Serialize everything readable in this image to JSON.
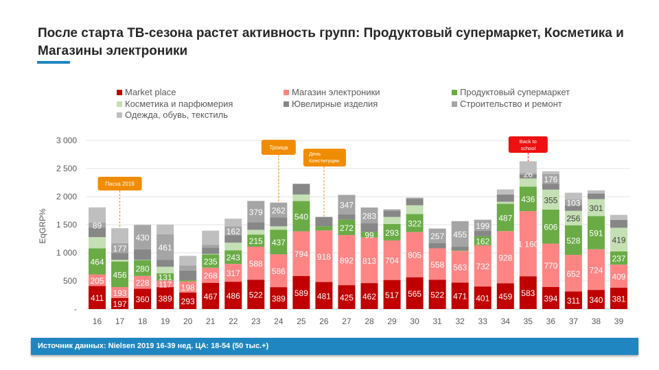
{
  "title": "После старта ТВ-сезона растет активность групп: Продуктовый супермаркет, Косметика и Магазины электроники",
  "footer": "Источник данных: Nielsen 2019 16-39 нед. ЦА: 18-54 (50 тыс.+)",
  "chart_data": {
    "type": "bar",
    "stacked": true,
    "ylabel": "EqGRP%",
    "xlabel": "",
    "ylim": [
      0,
      3000
    ],
    "yticks": [
      "-",
      "500",
      "1 000",
      "1 500",
      "2 000",
      "2 500",
      "3 000"
    ],
    "ytick_values": [
      0,
      500,
      1000,
      1500,
      2000,
      2500,
      3000
    ],
    "grid": true,
    "legend_position": "top",
    "categories": [
      "16",
      "17",
      "18",
      "19",
      "20",
      "21",
      "22",
      "23",
      "24",
      "25",
      "26",
      "27",
      "28",
      "29",
      "30",
      "31",
      "32",
      "33",
      "34",
      "35",
      "36",
      "37",
      "38",
      "39"
    ],
    "series": [
      {
        "name": "Market place",
        "color": "#c00000",
        "label_color": "#ffffff",
        "values": [
          411,
          197,
          360,
          389,
          293,
          467,
          486,
          522,
          389,
          589,
          481,
          425,
          462,
          517,
          565,
          522,
          471,
          401,
          459,
          583,
          394,
          311,
          340,
          381
        ],
        "labels": [
          "411",
          "197",
          "360",
          "389",
          "293",
          "467",
          "486",
          "522",
          "389",
          "589",
          "481",
          "425",
          "462",
          "517",
          "565",
          "522",
          "471",
          "401",
          "459",
          "583",
          "394",
          "311",
          "340",
          "381"
        ]
      },
      {
        "name": "Магазин электроники",
        "color": "#ff8585",
        "label_color": "#ffffff",
        "values": [
          205,
          193,
          228,
          117,
          198,
          268,
          317,
          588,
          586,
          794,
          918,
          892,
          813,
          704,
          805,
          558,
          563,
          732,
          928,
          1160,
          770,
          652,
          724,
          409
        ],
        "labels": [
          "205",
          "193",
          "228",
          "117",
          "198",
          "268",
          "317",
          "588",
          "586",
          "794",
          "918",
          "892",
          "813",
          "704",
          "805",
          "558",
          "563",
          "732",
          "928",
          "1 160",
          "770",
          "652",
          "724",
          "409"
        ]
      },
      {
        "name": "Продуктовый супермаркет",
        "color": "#6aab46",
        "label_color": "#ffffff",
        "values": [
          464,
          456,
          280,
          131,
          20,
          235,
          243,
          215,
          437,
          540,
          75,
          272,
          99,
          293,
          322,
          0,
          10,
          162,
          487,
          436,
          606,
          528,
          591,
          237
        ],
        "labels": [
          "464",
          "456",
          "280",
          "131",
          "",
          "235",
          "243",
          "215",
          "437",
          "540",
          "",
          "272",
          "99",
          "293",
          "322",
          "",
          "",
          "162",
          "487",
          "436",
          "606",
          "528",
          "591",
          "237"
        ]
      },
      {
        "name": "Косметика и парфюмерия",
        "color": "#c5e0b4",
        "label_color": "#404040",
        "values": [
          200,
          30,
          5,
          115,
          0,
          10,
          135,
          85,
          60,
          115,
          0,
          0,
          0,
          125,
          155,
          0,
          0,
          0,
          35,
          145,
          355,
          256,
          301,
          419
        ],
        "labels": [
          "",
          "",
          "",
          "",
          "",
          "",
          "",
          "",
          "",
          "",
          "",
          "",
          "",
          "",
          "",
          "",
          "",
          "",
          "",
          "",
          "355",
          "256",
          "301",
          "419"
        ]
      },
      {
        "name": "Ювелирные изделия",
        "color": "#878787",
        "label_color": "#ffffff",
        "values": [
          170,
          120,
          190,
          120,
          175,
          115,
          130,
          135,
          160,
          190,
          165,
          95,
          150,
          105,
          115,
          95,
          65,
          95,
          130,
          70,
          105,
          100,
          100,
          140
        ],
        "labels": [
          "",
          "",
          "",
          "",
          "",
          "",
          "",
          "",
          "",
          "",
          "",
          "",
          "",
          "",
          "",
          "",
          "",
          "",
          "",
          "",
          "",
          "",
          "",
          ""
        ]
      },
      {
        "name": "Строительство и ремонт",
        "color": "#a5a5a5",
        "label_color": "#ffffff",
        "values": [
          89,
          177,
          430,
          461,
          90,
          50,
          162,
          379,
          262,
          0,
          0,
          347,
          283,
          30,
          20,
          257,
          455,
          199,
          0,
          26,
          176,
          103,
          0,
          0
        ],
        "labels": [
          "89",
          "177",
          "430",
          "461",
          "",
          "",
          "162",
          "379",
          "262",
          "",
          "",
          "347",
          "283",
          "",
          "",
          "257",
          "455",
          "199",
          "",
          "26",
          "176",
          "103",
          "",
          ""
        ]
      },
      {
        "name": "Одежда, обувь, текстиль",
        "color": "#bfbfbf",
        "label_color": "#ffffff",
        "values": [
          270,
          265,
          10,
          170,
          170,
          250,
          135,
          0,
          0,
          0,
          0,
          0,
          0,
          0,
          0,
          0,
          0,
          0,
          90,
          210,
          45,
          120,
          55,
          90
        ],
        "labels": [
          "",
          "",
          "",
          "",
          "",
          "",
          "",
          "",
          "",
          "",
          "",
          "",
          "",
          "",
          "",
          "",
          "",
          "",
          "",
          "",
          "",
          "",
          "",
          ""
        ]
      }
    ],
    "annotations": [
      {
        "text": "Пасха 2019",
        "category": "17",
        "color": "#f08c00"
      },
      {
        "text": "Троица",
        "category": "24",
        "color": "#f08c00"
      },
      {
        "text": "День Конституции",
        "category": "26",
        "color": "#f08c00"
      },
      {
        "text": "Back to school",
        "category": "35",
        "color": "#ee1111"
      }
    ]
  }
}
